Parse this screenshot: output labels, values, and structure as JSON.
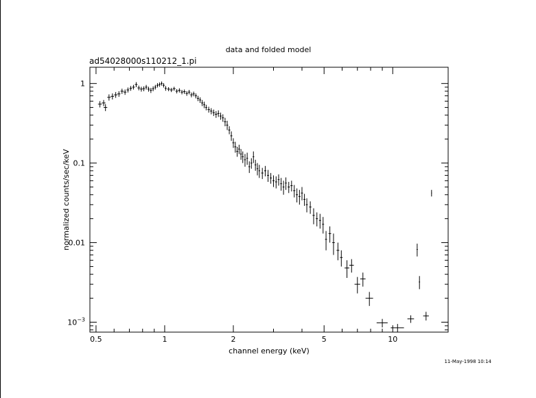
{
  "chart_data": {
    "type": "scatter",
    "title": "data and folded model",
    "subtitle": "ad54028000s110212_1.pi",
    "xlabel": "channel energy (keV)",
    "ylabel": "normalized counts/sec/keV",
    "x_scale": "log",
    "y_scale": "log",
    "xlim": [
      0.47,
      17.5
    ],
    "ylim": [
      0.00075,
      1.6
    ],
    "x_ticks": [
      {
        "value": 0.5,
        "label": "0.5"
      },
      {
        "value": 1,
        "label": "1"
      },
      {
        "value": 2,
        "label": "2"
      },
      {
        "value": 5,
        "label": "5"
      },
      {
        "value": 10,
        "label": "10"
      }
    ],
    "y_ticks": [
      {
        "value": 1,
        "label": "1",
        "exp": ""
      },
      {
        "value": 0.1,
        "label": "0.1",
        "exp": ""
      },
      {
        "value": 0.01,
        "label": "0.01",
        "exp": ""
      },
      {
        "value": 0.001,
        "label": "10",
        "exp": "−3"
      }
    ],
    "grid": false,
    "legend": "none",
    "series": [
      {
        "points": [
          [
            0.52,
            0.55,
            0.01,
            0.05
          ],
          [
            0.54,
            0.57,
            0.01,
            0.05
          ],
          [
            0.55,
            0.5,
            0.01,
            0.05
          ],
          [
            0.57,
            0.67,
            0.01,
            0.06
          ],
          [
            0.59,
            0.69,
            0.01,
            0.06
          ],
          [
            0.61,
            0.72,
            0.01,
            0.06
          ],
          [
            0.63,
            0.74,
            0.01,
            0.06
          ],
          [
            0.65,
            0.8,
            0.01,
            0.06
          ],
          [
            0.67,
            0.78,
            0.01,
            0.06
          ],
          [
            0.69,
            0.83,
            0.01,
            0.06
          ],
          [
            0.71,
            0.87,
            0.01,
            0.06
          ],
          [
            0.73,
            0.9,
            0.01,
            0.06
          ],
          [
            0.75,
            0.97,
            0.01,
            0.07
          ],
          [
            0.77,
            0.88,
            0.01,
            0.06
          ],
          [
            0.79,
            0.85,
            0.01,
            0.06
          ],
          [
            0.81,
            0.86,
            0.01,
            0.06
          ],
          [
            0.83,
            0.9,
            0.01,
            0.06
          ],
          [
            0.85,
            0.85,
            0.01,
            0.06
          ],
          [
            0.87,
            0.82,
            0.01,
            0.06
          ],
          [
            0.89,
            0.86,
            0.01,
            0.06
          ],
          [
            0.91,
            0.9,
            0.01,
            0.06
          ],
          [
            0.93,
            0.95,
            0.01,
            0.06
          ],
          [
            0.95,
            0.97,
            0.01,
            0.06
          ],
          [
            0.97,
            1.0,
            0.01,
            0.06
          ],
          [
            0.99,
            0.95,
            0.01,
            0.06
          ],
          [
            1.01,
            0.87,
            0.01,
            0.06
          ],
          [
            1.04,
            0.85,
            0.015,
            0.05
          ],
          [
            1.07,
            0.83,
            0.015,
            0.05
          ],
          [
            1.1,
            0.86,
            0.015,
            0.05
          ],
          [
            1.13,
            0.8,
            0.015,
            0.05
          ],
          [
            1.16,
            0.82,
            0.015,
            0.05
          ],
          [
            1.19,
            0.78,
            0.015,
            0.05
          ],
          [
            1.22,
            0.79,
            0.015,
            0.05
          ],
          [
            1.25,
            0.75,
            0.015,
            0.05
          ],
          [
            1.28,
            0.78,
            0.015,
            0.05
          ],
          [
            1.31,
            0.72,
            0.015,
            0.05
          ],
          [
            1.34,
            0.74,
            0.015,
            0.05
          ],
          [
            1.37,
            0.7,
            0.015,
            0.05
          ],
          [
            1.4,
            0.65,
            0.015,
            0.05
          ],
          [
            1.43,
            0.62,
            0.015,
            0.05
          ],
          [
            1.46,
            0.57,
            0.015,
            0.05
          ],
          [
            1.49,
            0.54,
            0.015,
            0.05
          ],
          [
            1.52,
            0.5,
            0.015,
            0.04
          ],
          [
            1.56,
            0.47,
            0.02,
            0.04
          ],
          [
            1.6,
            0.45,
            0.02,
            0.04
          ],
          [
            1.64,
            0.43,
            0.02,
            0.04
          ],
          [
            1.68,
            0.41,
            0.02,
            0.04
          ],
          [
            1.72,
            0.42,
            0.02,
            0.04
          ],
          [
            1.76,
            0.39,
            0.02,
            0.04
          ],
          [
            1.8,
            0.37,
            0.02,
            0.04
          ],
          [
            1.84,
            0.33,
            0.02,
            0.04
          ],
          [
            1.88,
            0.3,
            0.02,
            0.04
          ],
          [
            1.92,
            0.26,
            0.02,
            0.03
          ],
          [
            1.96,
            0.22,
            0.02,
            0.03
          ],
          [
            2.0,
            0.18,
            0.02,
            0.025
          ],
          [
            2.04,
            0.16,
            0.02,
            0.025
          ],
          [
            2.08,
            0.14,
            0.02,
            0.02
          ],
          [
            2.12,
            0.15,
            0.02,
            0.02
          ],
          [
            2.16,
            0.13,
            0.02,
            0.02
          ],
          [
            2.2,
            0.12,
            0.02,
            0.02
          ],
          [
            2.25,
            0.11,
            0.02,
            0.02
          ],
          [
            2.3,
            0.115,
            0.02,
            0.02
          ],
          [
            2.35,
            0.09,
            0.02,
            0.015
          ],
          [
            2.4,
            0.1,
            0.02,
            0.015
          ],
          [
            2.45,
            0.12,
            0.02,
            0.02
          ],
          [
            2.5,
            0.095,
            0.02,
            0.015
          ],
          [
            2.55,
            0.085,
            0.02,
            0.015
          ],
          [
            2.6,
            0.08,
            0.02,
            0.015
          ],
          [
            2.68,
            0.075,
            0.03,
            0.012
          ],
          [
            2.76,
            0.08,
            0.03,
            0.012
          ],
          [
            2.84,
            0.07,
            0.03,
            0.012
          ],
          [
            2.92,
            0.065,
            0.03,
            0.01
          ],
          [
            3.0,
            0.06,
            0.03,
            0.01
          ],
          [
            3.08,
            0.058,
            0.03,
            0.01
          ],
          [
            3.16,
            0.062,
            0.03,
            0.01
          ],
          [
            3.24,
            0.055,
            0.03,
            0.01
          ],
          [
            3.32,
            0.05,
            0.03,
            0.01
          ],
          [
            3.4,
            0.056,
            0.03,
            0.01
          ],
          [
            3.5,
            0.05,
            0.04,
            0.008
          ],
          [
            3.6,
            0.052,
            0.04,
            0.008
          ],
          [
            3.7,
            0.045,
            0.04,
            0.008
          ],
          [
            3.8,
            0.04,
            0.04,
            0.008
          ],
          [
            3.9,
            0.038,
            0.04,
            0.008
          ],
          [
            4.0,
            0.042,
            0.04,
            0.008
          ],
          [
            4.1,
            0.035,
            0.04,
            0.006
          ],
          [
            4.2,
            0.03,
            0.04,
            0.006
          ],
          [
            4.35,
            0.028,
            0.05,
            0.005
          ],
          [
            4.5,
            0.022,
            0.05,
            0.005
          ],
          [
            4.65,
            0.02,
            0.05,
            0.004
          ],
          [
            4.8,
            0.019,
            0.05,
            0.004
          ],
          [
            4.95,
            0.017,
            0.05,
            0.004
          ],
          [
            5.1,
            0.011,
            0.05,
            0.003
          ],
          [
            5.3,
            0.013,
            0.07,
            0.003
          ],
          [
            5.5,
            0.01,
            0.07,
            0.003
          ],
          [
            5.75,
            0.008,
            0.08,
            0.002
          ],
          [
            5.95,
            0.0065,
            0.08,
            0.0015
          ],
          [
            6.3,
            0.0048,
            0.15,
            0.0012
          ],
          [
            6.6,
            0.0052,
            0.15,
            0.001
          ],
          [
            7.0,
            0.003,
            0.2,
            0.0007
          ],
          [
            7.4,
            0.0035,
            0.2,
            0.0007
          ],
          [
            7.9,
            0.002,
            0.3,
            0.0004
          ],
          [
            9.0,
            0.00098,
            0.5,
            0.00012
          ],
          [
            10.5,
            0.00085,
            0.7,
            0.0001
          ],
          [
            12.0,
            0.0011,
            0.4,
            0.00012
          ],
          [
            12.8,
            0.0082,
            0.08,
            0.0015
          ],
          [
            13.1,
            0.0032,
            0.08,
            0.0006
          ],
          [
            14.0,
            0.0012,
            0.4,
            0.00015
          ],
          [
            14.8,
            0.042,
            0.05,
            0.004
          ]
        ]
      }
    ]
  },
  "footer": {
    "timestamp": "11-May-1998 10:14"
  }
}
